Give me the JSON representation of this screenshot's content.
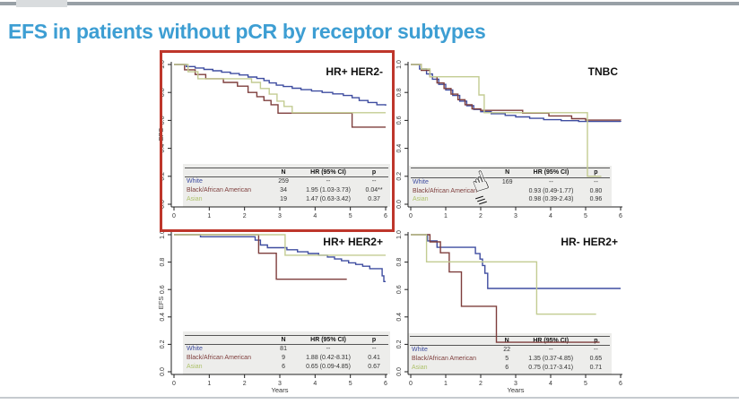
{
  "slide": {
    "title": "EFS in patients without pCR by receptor subtypes"
  },
  "colors": {
    "title": "#3d9ed3",
    "highlight_box": "#be362b",
    "white_series": "#3f4da0",
    "black_aa_series": "#7e3e3c",
    "asian_series": "#c3cc92",
    "asian_label": "#aec26b",
    "table_bg": "#ededeb",
    "axis_text": "#333333"
  },
  "cursor": {
    "name": "clicking-hand-cursor"
  },
  "chart_data": [
    {
      "id": "hr-pos-her2-neg",
      "type": "line",
      "title": "HR+ HER2-",
      "xlabel": "",
      "ylabel": "EFS",
      "xlim": [
        0,
        6
      ],
      "ylim": [
        0.0,
        1.0
      ],
      "xticks": [
        "0",
        "1",
        "2",
        "3",
        "4",
        "5",
        "6"
      ],
      "yticks": [
        "0.0",
        "0.2",
        "0.4",
        "0.6",
        "0.8",
        "1.0"
      ],
      "series": [
        {
          "name": "White",
          "color": "#3f4da0",
          "points": [
            [
              0,
              1
            ],
            [
              0.35,
              0.985
            ],
            [
              0.6,
              0.975
            ],
            [
              0.85,
              0.965
            ],
            [
              1.1,
              0.955
            ],
            [
              1.35,
              0.945
            ],
            [
              1.6,
              0.935
            ],
            [
              1.85,
              0.925
            ],
            [
              2.1,
              0.91
            ],
            [
              2.35,
              0.9
            ],
            [
              2.55,
              0.885
            ],
            [
              2.7,
              0.868
            ],
            [
              2.9,
              0.852
            ],
            [
              3.1,
              0.842
            ],
            [
              3.35,
              0.83
            ],
            [
              3.6,
              0.82
            ],
            [
              3.9,
              0.81
            ],
            [
              4.2,
              0.8
            ],
            [
              4.5,
              0.79
            ],
            [
              4.8,
              0.778
            ],
            [
              5.05,
              0.762
            ],
            [
              5.25,
              0.742
            ],
            [
              5.5,
              0.728
            ],
            [
              5.75,
              0.712
            ],
            [
              6,
              0.705
            ]
          ]
        },
        {
          "name": "Black/African American",
          "color": "#7e3e3c",
          "points": [
            [
              0,
              1
            ],
            [
              0.3,
              0.962
            ],
            [
              0.6,
              0.928
            ],
            [
              0.9,
              0.898
            ],
            [
              1.4,
              0.872
            ],
            [
              1.8,
              0.845
            ],
            [
              2.1,
              0.8
            ],
            [
              2.35,
              0.77
            ],
            [
              2.55,
              0.742
            ],
            [
              2.75,
              0.712
            ],
            [
              2.95,
              0.652
            ],
            [
              5.05,
              0.552
            ],
            [
              6,
              0.552
            ]
          ]
        },
        {
          "name": "Asian",
          "color": "#c3cc92",
          "points": [
            [
              0,
              1
            ],
            [
              0.4,
              0.948
            ],
            [
              0.68,
              0.898
            ],
            [
              2.2,
              0.872
            ],
            [
              2.45,
              0.828
            ],
            [
              2.7,
              0.788
            ],
            [
              2.92,
              0.738
            ],
            [
              3.12,
              0.7
            ],
            [
              3.35,
              0.655
            ],
            [
              6,
              0.655
            ]
          ]
        }
      ],
      "table": {
        "headers": [
          "N",
          "HR (95% CI)",
          "p"
        ],
        "rows": [
          {
            "label": "White",
            "label_color": "#3f4da0",
            "n": "259",
            "hr": "--",
            "p": "--"
          },
          {
            "label": "Black/African American",
            "label_color": "#7e3e3c",
            "n": "34",
            "hr": "1.95 (1.03-3.73)",
            "p": "0.04**"
          },
          {
            "label": "Asian",
            "label_color": "#aec26b",
            "n": "19",
            "hr": "1.47 (0.63-3.42)",
            "p": "0.37"
          }
        ]
      }
    },
    {
      "id": "tnbc",
      "type": "line",
      "title": "TNBC",
      "xlabel": "",
      "ylabel": "",
      "xlim": [
        0,
        6
      ],
      "ylim": [
        0.0,
        1.0
      ],
      "xticks": [
        "0",
        "1",
        "2",
        "3",
        "4",
        "5",
        "6"
      ],
      "yticks": [
        "0.0",
        "0.2",
        "0.4",
        "0.6",
        "0.8",
        "1.0"
      ],
      "series": [
        {
          "name": "White",
          "color": "#3f4da0",
          "points": [
            [
              0,
              1
            ],
            [
              0.25,
              0.968
            ],
            [
              0.45,
              0.932
            ],
            [
              0.62,
              0.895
            ],
            [
              0.8,
              0.858
            ],
            [
              1,
              0.818
            ],
            [
              1.2,
              0.778
            ],
            [
              1.4,
              0.738
            ],
            [
              1.6,
              0.705
            ],
            [
              1.8,
              0.678
            ],
            [
              2,
              0.662
            ],
            [
              2.3,
              0.648
            ],
            [
              2.7,
              0.636
            ],
            [
              3,
              0.625
            ],
            [
              3.4,
              0.615
            ],
            [
              3.8,
              0.605
            ],
            [
              4.3,
              0.598
            ],
            [
              4.8,
              0.592
            ],
            [
              6,
              0.59
            ]
          ]
        },
        {
          "name": "Black/African American",
          "color": "#7e3e3c",
          "points": [
            [
              0,
              1
            ],
            [
              0.3,
              0.958
            ],
            [
              0.55,
              0.912
            ],
            [
              0.75,
              0.868
            ],
            [
              0.95,
              0.828
            ],
            [
              1.15,
              0.788
            ],
            [
              1.35,
              0.748
            ],
            [
              1.55,
              0.712
            ],
            [
              1.75,
              0.682
            ],
            [
              2,
              0.672
            ],
            [
              3.2,
              0.652
            ],
            [
              3.95,
              0.632
            ],
            [
              4.6,
              0.612
            ],
            [
              5,
              0.602
            ],
            [
              6,
              0.6
            ]
          ]
        },
        {
          "name": "Asian",
          "color": "#c3cc92",
          "points": [
            [
              0,
              1
            ],
            [
              0.3,
              0.968
            ],
            [
              0.55,
              0.912
            ],
            [
              1.95,
              0.782
            ],
            [
              2.1,
              0.655
            ],
            [
              5.05,
              0.2
            ],
            [
              5.45,
              0.2
            ]
          ]
        }
      ],
      "table": {
        "headers": [
          "N",
          "HR (95% CI)",
          "p"
        ],
        "rows": [
          {
            "label": "White",
            "label_color": "#3f4da0",
            "n": "169",
            "hr": "--",
            "p": "--"
          },
          {
            "label": "Black/African American",
            "label_color": "#7e3e3c",
            "n": "",
            "hr": "0.93 (0.49-1.77)",
            "p": "0.80"
          },
          {
            "label": "Asian",
            "label_color": "#aec26b",
            "n": "",
            "hr": "0.98 (0.39-2.43)",
            "p": "0.96"
          }
        ]
      }
    },
    {
      "id": "hr-pos-her2-pos",
      "type": "line",
      "title": "HR+ HER2+",
      "xlabel": "Years",
      "ylabel": "EFS",
      "xlim": [
        0,
        6
      ],
      "ylim": [
        0.0,
        1.0
      ],
      "xticks": [
        "0",
        "1",
        "2",
        "3",
        "4",
        "5",
        "6"
      ],
      "yticks": [
        "0.0",
        "0.2",
        "0.4",
        "0.6",
        "0.8",
        "1.0"
      ],
      "series": [
        {
          "name": "White",
          "color": "#3f4da0",
          "points": [
            [
              0,
              1
            ],
            [
              0.75,
              0.985
            ],
            [
              2.3,
              0.96
            ],
            [
              2.45,
              0.925
            ],
            [
              2.65,
              0.905
            ],
            [
              3.2,
              0.89
            ],
            [
              3.5,
              0.875
            ],
            [
              3.8,
              0.863
            ],
            [
              4.1,
              0.85
            ],
            [
              4.35,
              0.837
            ],
            [
              4.55,
              0.823
            ],
            [
              4.75,
              0.81
            ],
            [
              4.95,
              0.795
            ],
            [
              5.15,
              0.783
            ],
            [
              5.35,
              0.77
            ],
            [
              5.55,
              0.752
            ],
            [
              5.9,
              0.7
            ],
            [
              5.95,
              0.658
            ],
            [
              6,
              0.658
            ]
          ]
        },
        {
          "name": "Black/African American",
          "color": "#7e3e3c",
          "points": [
            [
              0,
              1
            ],
            [
              2.4,
              0.865
            ],
            [
              2.9,
              0.675
            ],
            [
              4.9,
              0.675
            ]
          ]
        },
        {
          "name": "Asian",
          "color": "#c3cc92",
          "points": [
            [
              0,
              1
            ],
            [
              3.15,
              0.85
            ],
            [
              6,
              0.85
            ]
          ]
        }
      ],
      "table": {
        "headers": [
          "N",
          "HR (95% CI)",
          "p"
        ],
        "rows": [
          {
            "label": "White",
            "label_color": "#3f4da0",
            "n": "81",
            "hr": "--",
            "p": "--"
          },
          {
            "label": "Black/African American",
            "label_color": "#7e3e3c",
            "n": "9",
            "hr": "1.88 (0.42-8.31)",
            "p": "0.41"
          },
          {
            "label": "Asian",
            "label_color": "#aec26b",
            "n": "6",
            "hr": "0.65 (0.09-4.85)",
            "p": "0.67"
          }
        ]
      }
    },
    {
      "id": "hr-neg-her2-pos",
      "type": "line",
      "title": "HR- HER2+",
      "xlabel": "Years",
      "ylabel": "",
      "xlim": [
        0,
        6
      ],
      "ylim": [
        0.0,
        1.0
      ],
      "xticks": [
        "0",
        "1",
        "2",
        "3",
        "4",
        "5",
        "6"
      ],
      "yticks": [
        "0.0",
        "0.2",
        "0.4",
        "0.6",
        "0.8",
        "1.0"
      ],
      "series": [
        {
          "name": "White",
          "color": "#3f4da0",
          "points": [
            [
              0,
              1
            ],
            [
              0.48,
              0.955
            ],
            [
              0.75,
              0.908
            ],
            [
              1.85,
              0.862
            ],
            [
              1.98,
              0.822
            ],
            [
              2.05,
              0.775
            ],
            [
              2.12,
              0.718
            ],
            [
              2.2,
              0.608
            ],
            [
              6,
              0.608
            ]
          ]
        },
        {
          "name": "Black/African American",
          "color": "#7e3e3c",
          "points": [
            [
              0,
              1
            ],
            [
              0.55,
              0.948
            ],
            [
              0.85,
              0.868
            ],
            [
              1.1,
              0.728
            ],
            [
              1.45,
              0.478
            ],
            [
              2.45,
              0.215
            ],
            [
              5.4,
              0.215
            ]
          ]
        },
        {
          "name": "Asian",
          "color": "#c3cc92",
          "points": [
            [
              0,
              1
            ],
            [
              0.45,
              0.802
            ],
            [
              3.6,
              0.42
            ],
            [
              5.3,
              0.42
            ]
          ]
        }
      ],
      "table": {
        "headers": [
          "N",
          "HR (95% CI)",
          "p"
        ],
        "rows": [
          {
            "label": "White",
            "label_color": "#3f4da0",
            "n": "22",
            "hr": "--",
            "p": "--"
          },
          {
            "label": "Black/African American",
            "label_color": "#7e3e3c",
            "n": "5",
            "hr": "1.35 (0.37-4.85)",
            "p": "0.65"
          },
          {
            "label": "Asian",
            "label_color": "#aec26b",
            "n": "6",
            "hr": "0.75 (0.17-3.41)",
            "p": "0.71"
          }
        ]
      }
    }
  ]
}
